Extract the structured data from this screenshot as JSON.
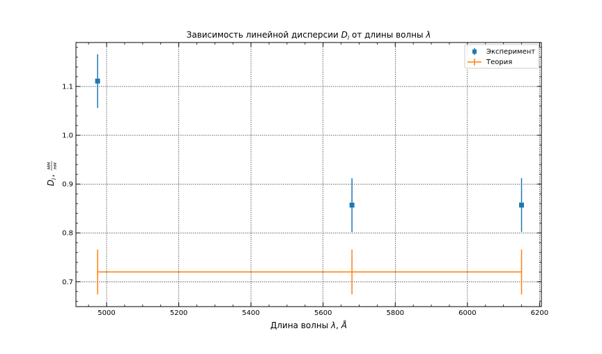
{
  "chart_data": {
    "type": "scatter",
    "title": "Зависимость линейной дисперсии D_l от длины волны λ",
    "title_parts": {
      "prefix": "Зависимость линейной дисперсии ",
      "sym_main": "D",
      "sym_sub": "l",
      "middle": " от длины волны ",
      "lambda": "λ"
    },
    "xlabel": "Длина волны λ, Å",
    "xlabel_parts": {
      "prefix": "Длина волны ",
      "lambda": "λ",
      "sep": ", ",
      "unit": "Å"
    },
    "ylabel": "D_l, мм/нм",
    "ylabel_parts": {
      "main": "D",
      "sub": "l",
      "sep": ", ",
      "num": "мм",
      "den": "нм"
    },
    "xlim": [
      4915,
      6205
    ],
    "ylim": [
      0.649,
      1.19
    ],
    "grid": true,
    "legend_position": "top-right",
    "x_ticks": [
      5000,
      5200,
      5400,
      5600,
      5800,
      6000,
      6200
    ],
    "x_tick_labels": [
      "5000",
      "5200",
      "5400",
      "5600",
      "5800",
      "6000",
      "6200"
    ],
    "y_ticks": [
      0.7,
      0.8,
      0.9,
      1.0,
      1.1
    ],
    "y_tick_labels": [
      "0.7",
      "0.8",
      "0.9",
      "1.0",
      "1.1"
    ],
    "series": [
      {
        "name": "Эксперимент",
        "color": "#1f77b4",
        "marker": "square",
        "linestyle": "none",
        "x": [
          4975,
          5680,
          6150
        ],
        "y": [
          1.111,
          0.857,
          0.857
        ],
        "yerr": [
          0.055,
          0.055,
          0.055
        ]
      },
      {
        "name": "Теория",
        "color": "#ff7f0e",
        "marker": "none",
        "linestyle": "solid",
        "x": [
          4975,
          5680,
          6150
        ],
        "y": [
          0.72,
          0.72,
          0.72
        ],
        "yerr": [
          0.046,
          0.046,
          0.046
        ]
      }
    ]
  }
}
